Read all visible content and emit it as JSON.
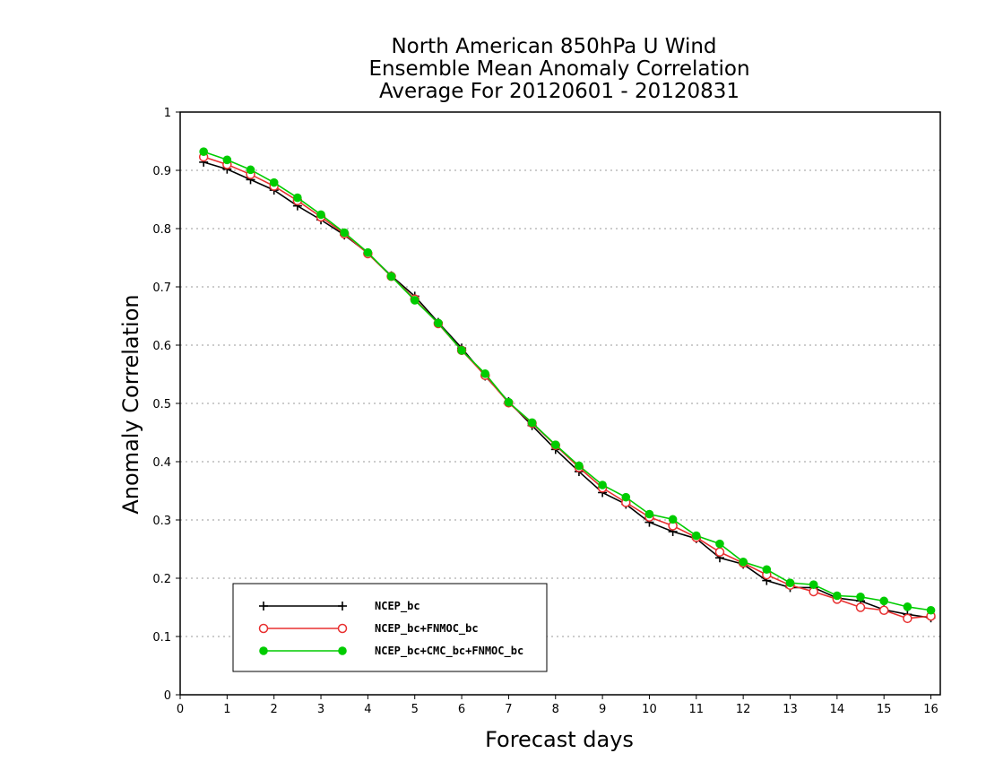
{
  "chart_data": {
    "type": "line",
    "title_lines": [
      "North American 850hPa U Wind",
      "Ensemble Mean Anomaly Correlation",
      "Average For 20120601 - 20120831"
    ],
    "xlabel": "Forecast days",
    "ylabel": "Anomaly Correlation",
    "xlim": [
      0,
      16.2
    ],
    "ylim": [
      0,
      1
    ],
    "x_ticks": [
      "0",
      "1",
      "2",
      "3",
      "4",
      "5",
      "6",
      "7",
      "8",
      "9",
      "10",
      "11",
      "12",
      "13",
      "14",
      "15",
      "16"
    ],
    "y_ticks": [
      "0",
      "0.1",
      "0.2",
      "0.3",
      "0.4",
      "0.5",
      "0.6",
      "0.7",
      "0.8",
      "0.9",
      "1"
    ],
    "grid": "horizontal dotted",
    "legend_position": "bottom-left",
    "x": [
      0.5,
      1,
      1.5,
      2,
      2.5,
      3,
      3.5,
      4,
      4.5,
      5,
      5.5,
      6,
      6.5,
      7,
      7.5,
      8,
      8.5,
      9,
      9.5,
      10,
      10.5,
      11,
      11.5,
      12,
      12.5,
      13,
      13.5,
      14,
      14.5,
      15,
      15.5,
      16
    ],
    "series": [
      {
        "name": "NCEP_bc",
        "color": "#000000",
        "marker": "plus",
        "values": [
          0.914,
          0.902,
          0.884,
          0.866,
          0.839,
          0.815,
          0.789,
          0.758,
          0.719,
          0.684,
          0.639,
          0.595,
          0.547,
          0.503,
          0.462,
          0.421,
          0.383,
          0.347,
          0.327,
          0.296,
          0.28,
          0.268,
          0.235,
          0.224,
          0.196,
          0.184,
          0.184,
          0.166,
          0.161,
          0.146,
          0.138,
          0.132
        ]
      },
      {
        "name": "NCEP_bc+FNMOC_bc",
        "color": "#e83030",
        "marker": "open-circle",
        "values": [
          0.923,
          0.91,
          0.893,
          0.873,
          0.848,
          0.82,
          0.791,
          0.757,
          0.718,
          0.679,
          0.637,
          0.591,
          0.548,
          0.501,
          0.466,
          0.428,
          0.39,
          0.355,
          0.33,
          0.305,
          0.29,
          0.27,
          0.245,
          0.226,
          0.206,
          0.188,
          0.177,
          0.164,
          0.15,
          0.145,
          0.131,
          0.135
        ]
      },
      {
        "name": "NCEP_bc+CMC_bc+FNMOC_bc",
        "color": "#00cc00",
        "marker": "filled-circle",
        "values": [
          0.932,
          0.918,
          0.901,
          0.879,
          0.853,
          0.824,
          0.793,
          0.759,
          0.718,
          0.677,
          0.638,
          0.591,
          0.551,
          0.502,
          0.467,
          0.429,
          0.393,
          0.36,
          0.339,
          0.31,
          0.301,
          0.273,
          0.259,
          0.228,
          0.215,
          0.192,
          0.189,
          0.17,
          0.168,
          0.161,
          0.151,
          0.145
        ]
      }
    ]
  }
}
